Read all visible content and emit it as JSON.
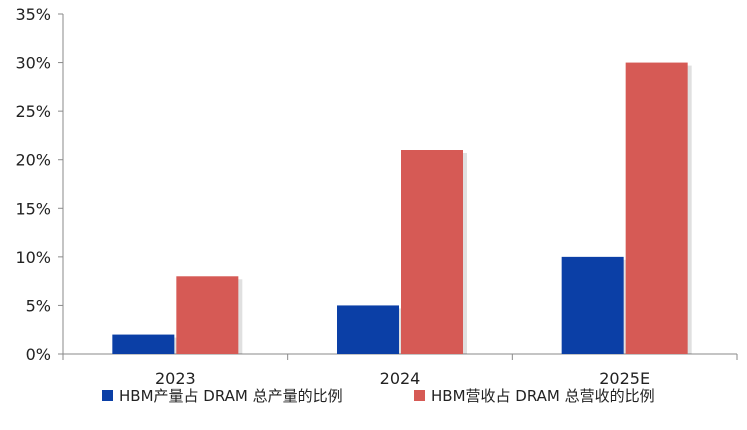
{
  "chart_data": {
    "type": "bar",
    "title": "",
    "xlabel": "",
    "ylabel": "",
    "categories": [
      "2023",
      "2024",
      "2025E"
    ],
    "series": [
      {
        "name": "HBM产量占 DRAM 总产量的比例",
        "values": [
          2,
          5,
          10
        ],
        "color": "#0b3fa6"
      },
      {
        "name": "HBM营收占 DRAM 总营收的比例",
        "values": [
          8,
          21,
          30
        ],
        "color": "#d65a55"
      }
    ],
    "ylim": [
      0,
      35
    ],
    "yticks": [
      "0%",
      "5%",
      "10%",
      "15%",
      "20%",
      "25%",
      "30%",
      "35%"
    ],
    "ytick_values": [
      0,
      5,
      10,
      15,
      20,
      25,
      30,
      35
    ],
    "grid": false,
    "legend_position": "bottom"
  }
}
